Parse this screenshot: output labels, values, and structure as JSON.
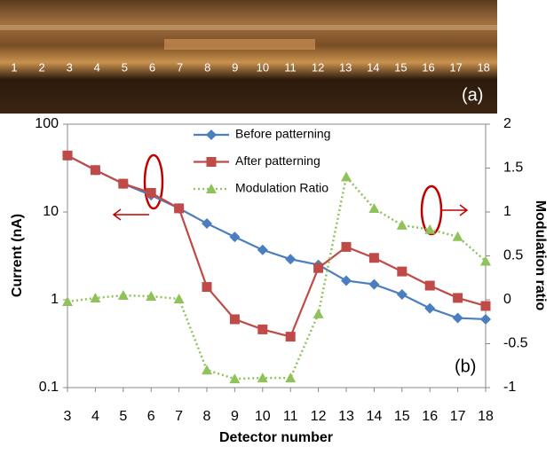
{
  "photo": {
    "labels": [
      "1",
      "2",
      "3",
      "4",
      "5",
      "6",
      "7",
      "8",
      "9",
      "10",
      "11",
      "12",
      "13",
      "14",
      "15",
      "16",
      "17",
      "18"
    ],
    "caption": "(a)"
  },
  "chart_data": {
    "type": "line",
    "annotation": "(b)",
    "x_label": "Detector number",
    "y_label": "Current (nA)",
    "y2_label": "Modulation ratio",
    "x": [
      3,
      4,
      5,
      6,
      7,
      8,
      9,
      10,
      11,
      12,
      13,
      14,
      15,
      16,
      17,
      18
    ],
    "xlim": [
      3,
      18
    ],
    "xticks": [
      3,
      4,
      5,
      6,
      7,
      8,
      9,
      10,
      11,
      12,
      13,
      14,
      15,
      16,
      17,
      18
    ],
    "yscale": "log",
    "ylim": [
      0.1,
      100
    ],
    "yticks": [
      0.1,
      1,
      10,
      100
    ],
    "y2lim": [
      -1,
      2
    ],
    "y2ticks": [
      -1,
      -0.5,
      0,
      0.5,
      1,
      1.5,
      2
    ],
    "series": [
      {
        "name": "Before patterning",
        "color": "#4a7ebf",
        "marker": "diamond",
        "linestyle": "solid",
        "values": [
          44,
          30,
          21,
          15.5,
          11,
          7.4,
          5.2,
          3.7,
          2.9,
          2.5,
          1.65,
          1.5,
          1.15,
          0.8,
          0.62,
          0.6
        ]
      },
      {
        "name": "After patterning",
        "color": "#be4b48",
        "marker": "square",
        "linestyle": "solid",
        "values": [
          44,
          30,
          21,
          16.5,
          11,
          1.4,
          0.6,
          0.46,
          0.38,
          2.3,
          4,
          3,
          2.1,
          1.45,
          1.05,
          0.85
        ]
      },
      {
        "name": "Modulation Ratio",
        "color": "#8fc35a",
        "marker": "triangle",
        "linestyle": "dotted",
        "axis": "y2",
        "values": [
          -0.02,
          0.02,
          0.05,
          0.04,
          0.01,
          -0.8,
          -0.9,
          -0.89,
          -0.89,
          -0.16,
          1.4,
          1.04,
          0.85,
          0.8,
          0.72,
          0.44
        ]
      }
    ]
  }
}
